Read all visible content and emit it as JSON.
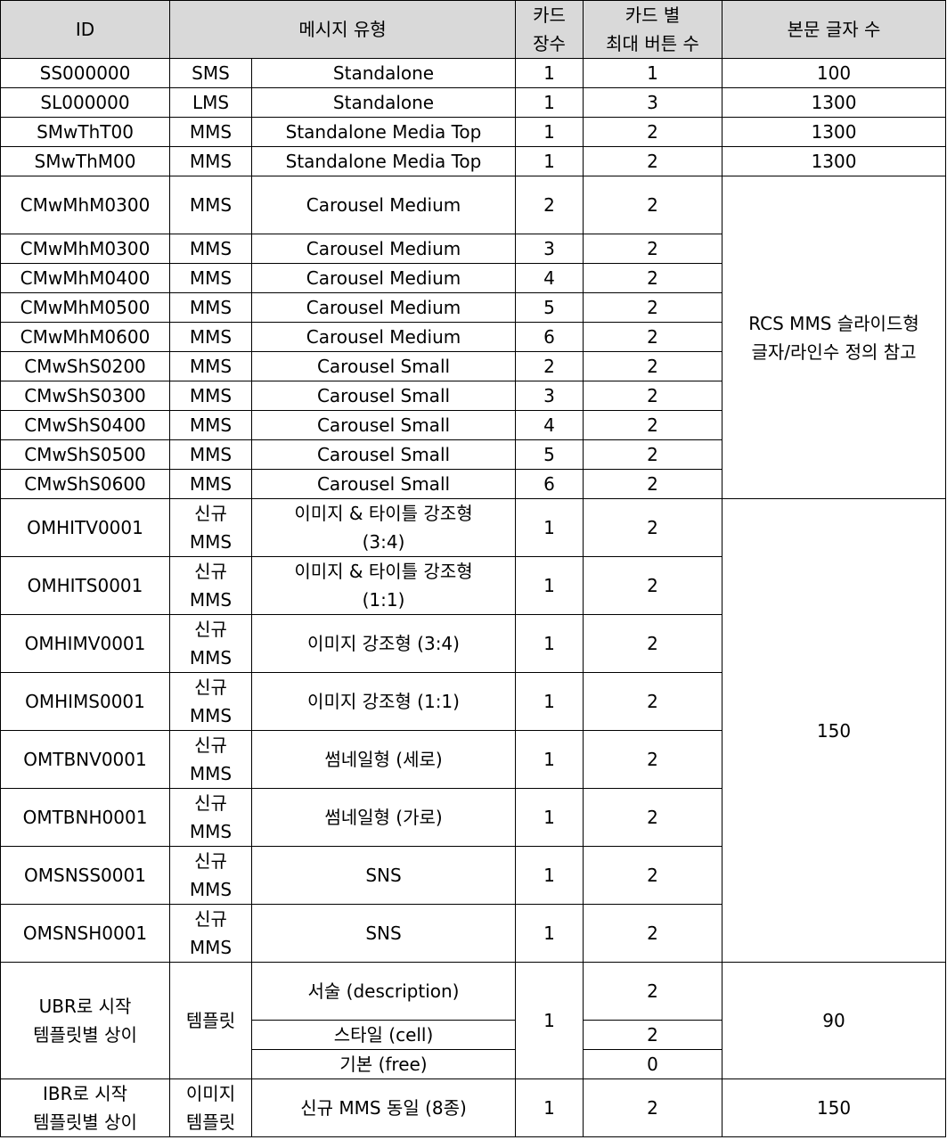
{
  "header": {
    "id": "ID",
    "type": "메시지 유형",
    "cards_line1": "카드",
    "cards_line2": "장수",
    "buttons_line1": "카드 별",
    "buttons_line2": "최대 버튼 수",
    "chars": "본문 글자 수"
  },
  "rows": [
    {
      "id": "SS000000",
      "kind": "SMS",
      "name": "Standalone",
      "cards": "1",
      "buttons": "1",
      "chars": "100"
    },
    {
      "id": "SL000000",
      "kind": "LMS",
      "name": "Standalone",
      "cards": "1",
      "buttons": "3",
      "chars": "1300"
    },
    {
      "id": "SMwThT00",
      "kind": "MMS",
      "name": "Standalone Media Top",
      "cards": "1",
      "buttons": "2",
      "chars": "1300"
    },
    {
      "id": "SMwThM00",
      "kind": "MMS",
      "name": "Standalone Media Top",
      "cards": "1",
      "buttons": "2",
      "chars": "1300"
    },
    {
      "id": "CMwMhM0300",
      "kind": "MMS",
      "name": "Carousel Medium",
      "cards": "2",
      "buttons": "2"
    },
    {
      "id": "CMwMhM0300",
      "kind": "MMS",
      "name": "Carousel Medium",
      "cards": "3",
      "buttons": "2"
    },
    {
      "id": "CMwMhM0400",
      "kind": "MMS",
      "name": "Carousel Medium",
      "cards": "4",
      "buttons": "2"
    },
    {
      "id": "CMwMhM0500",
      "kind": "MMS",
      "name": "Carousel Medium",
      "cards": "5",
      "buttons": "2"
    },
    {
      "id": "CMwMhM0600",
      "kind": "MMS",
      "name": "Carousel Medium",
      "cards": "6",
      "buttons": "2"
    },
    {
      "id": "CMwShS0200",
      "kind": "MMS",
      "name": "Carousel Small",
      "cards": "2",
      "buttons": "2"
    },
    {
      "id": "CMwShS0300",
      "kind": "MMS",
      "name": "Carousel Small",
      "cards": "3",
      "buttons": "2"
    },
    {
      "id": "CMwShS0400",
      "kind": "MMS",
      "name": "Carousel Small",
      "cards": "4",
      "buttons": "2"
    },
    {
      "id": "CMwShS0500",
      "kind": "MMS",
      "name": "Carousel Small",
      "cards": "5",
      "buttons": "2"
    },
    {
      "id": "CMwShS0600",
      "kind": "MMS",
      "name": "Carousel Small",
      "cards": "6",
      "buttons": "2"
    },
    {
      "id": "OMHITV0001",
      "kind1": "신규",
      "kind2": "MMS",
      "name1": "이미지 & 타이틀 강조형",
      "name2": "(3:4)",
      "cards": "1",
      "buttons": "2"
    },
    {
      "id": "OMHITS0001",
      "kind1": "신규",
      "kind2": "MMS",
      "name1": "이미지 & 타이틀 강조형",
      "name2": "(1:1)",
      "cards": "1",
      "buttons": "2"
    },
    {
      "id": "OMHIMV0001",
      "kind1": "신규",
      "kind2": "MMS",
      "name": "이미지 강조형 (3:4)",
      "cards": "1",
      "buttons": "2"
    },
    {
      "id": "OMHIMS0001",
      "kind1": "신규",
      "kind2": "MMS",
      "name": "이미지 강조형 (1:1)",
      "cards": "1",
      "buttons": "2"
    },
    {
      "id": "OMTBNV0001",
      "kind1": "신규",
      "kind2": "MMS",
      "name": "썸네일형 (세로)",
      "cards": "1",
      "buttons": "2"
    },
    {
      "id": "OMTBNH0001",
      "kind1": "신규",
      "kind2": "MMS",
      "name": "썸네일형 (가로)",
      "cards": "1",
      "buttons": "2"
    },
    {
      "id": "OMSNSS0001",
      "kind1": "신규",
      "kind2": "MMS",
      "name": "SNS",
      "cards": "1",
      "buttons": "2"
    },
    {
      "id": "OMSNSH0001",
      "kind1": "신규",
      "kind2": "MMS",
      "name": "SNS",
      "cards": "1",
      "buttons": "2"
    }
  ],
  "carousel_chars_line1": "RCS MMS 슬라이드형",
  "carousel_chars_line2": "글자/라인수 정의 참고",
  "new_mms_chars": "150",
  "ubr": {
    "id_line1": "UBR로 시작",
    "id_line2": "템플릿별 상이",
    "kind": "템플릿",
    "cards": "1",
    "chars": "90",
    "subrows": [
      {
        "name": "서술 (description)",
        "buttons": "2"
      },
      {
        "name": "스타일 (cell)",
        "buttons": "2"
      },
      {
        "name": "기본 (free)",
        "buttons": "0"
      }
    ]
  },
  "ibr": {
    "id_line1": "IBR로 시작",
    "id_line2": "템플릿별 상이",
    "kind_line1": "이미지",
    "kind_line2": "템플릿",
    "name": "신규 MMS 동일 (8종)",
    "cards": "1",
    "buttons": "2",
    "chars": "150"
  }
}
